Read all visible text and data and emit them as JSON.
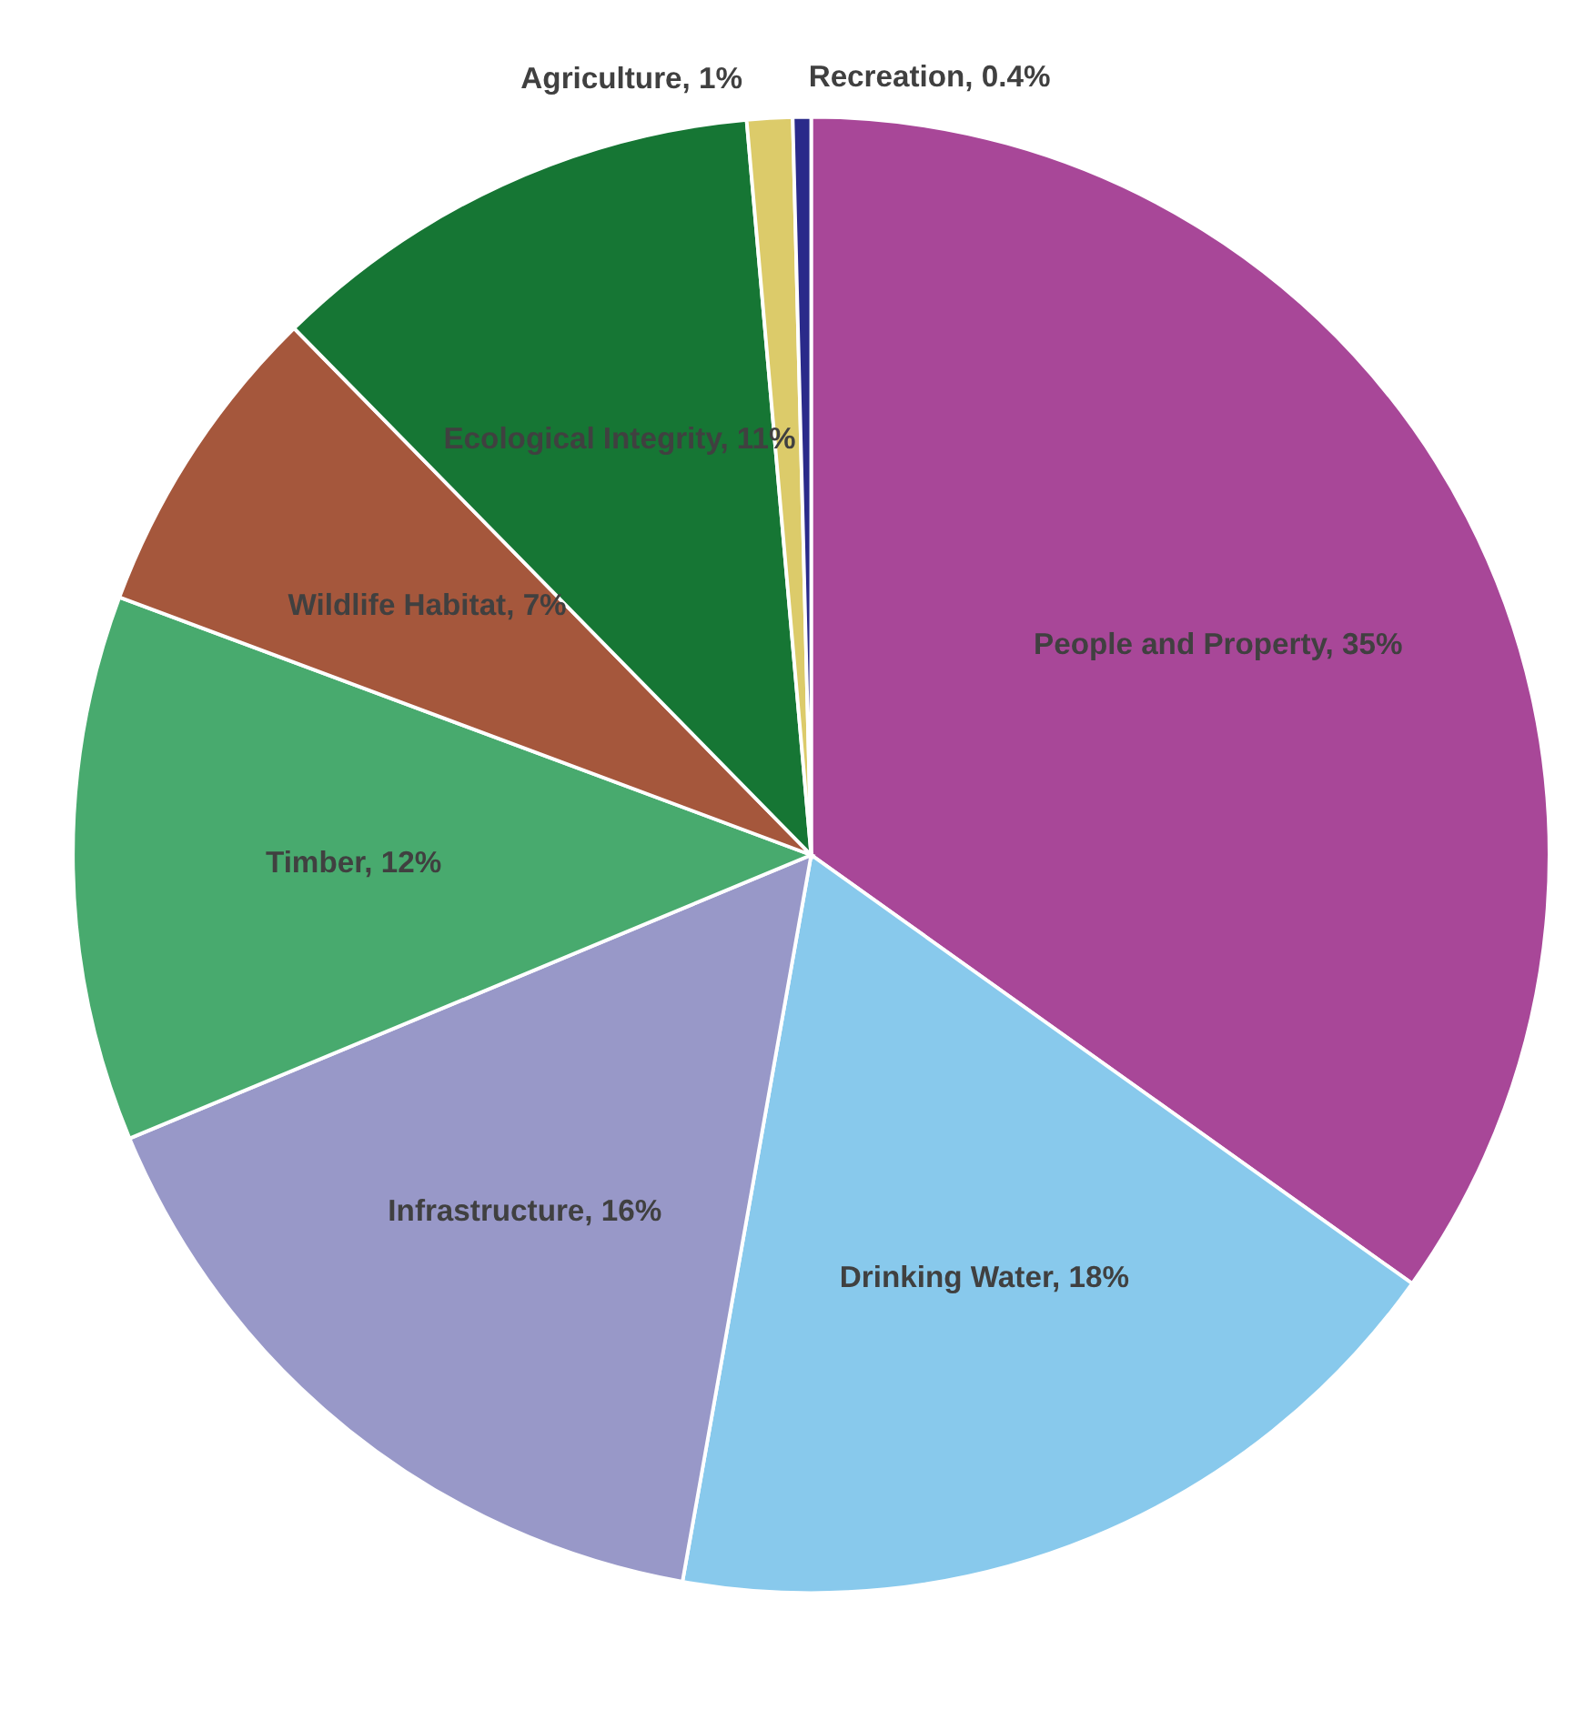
{
  "chart_data": {
    "type": "pie",
    "categories": [
      "People and Property",
      "Drinking Water",
      "Infrastructure",
      "Timber",
      "Wildlife Habitat",
      "Ecological Integrity",
      "Agriculture",
      "Recreation"
    ],
    "values": [
      35,
      18,
      16,
      12,
      7,
      11,
      1,
      0.4
    ],
    "value_labels": [
      "35%",
      "18%",
      "16%",
      "12%",
      "7%",
      "11%",
      "1%",
      "0.4%"
    ],
    "colors": [
      "#a84798",
      "#88c9ec",
      "#9898c8",
      "#48aa6e",
      "#a5573c",
      "#167634",
      "#dccb6a",
      "#2a2a8a"
    ],
    "legend": false
  }
}
